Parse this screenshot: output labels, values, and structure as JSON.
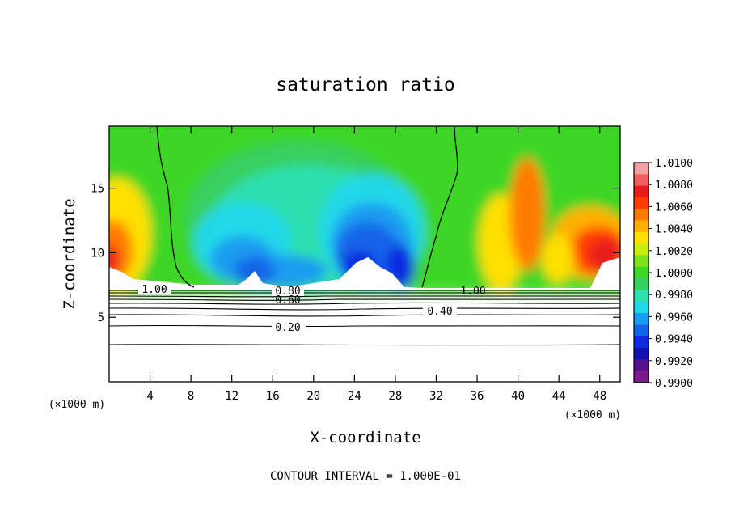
{
  "chart_data": {
    "type": "heatmap",
    "title": "saturation ratio",
    "xlabel": "X-coordinate",
    "ylabel": "Z-coordinate",
    "x_unit": "(×1000 m)",
    "footer": "CONTOUR INTERVAL = 1.000E-01",
    "xlim": [
      0,
      50
    ],
    "ylim": [
      0,
      19.8
    ],
    "x_ticks": [
      4,
      8,
      12,
      16,
      20,
      24,
      28,
      32,
      36,
      40,
      44,
      48
    ],
    "y_ticks": [
      5,
      10,
      15
    ],
    "colorbar": {
      "min": 0.99,
      "max": 1.01,
      "labels": [
        "1.0100",
        "1.0080",
        "1.0060",
        "1.0040",
        "1.0020",
        "1.0000",
        "0.9980",
        "0.9960",
        "0.9940",
        "0.9920",
        "0.9900"
      ],
      "colors": [
        "#f4a0a0",
        "#f06060",
        "#e81c1c",
        "#ff3c00",
        "#ff7a00",
        "#ffb000",
        "#ffe000",
        "#c8ee10",
        "#7ee21a",
        "#3ed628",
        "#38d060",
        "#2ee0b0",
        "#22d8e8",
        "#1a9cf0",
        "#1464e8",
        "#0c2ce0",
        "#1010b0",
        "#5a108c",
        "#7a1a8c"
      ]
    },
    "contour_labels": [
      {
        "text": "1.00",
        "x": 3.8,
        "y": 7.1
      },
      {
        "text": "0.80",
        "x": 17.5,
        "y": 7.0
      },
      {
        "text": "0.60",
        "x": 17.5,
        "y": 6.4
      },
      {
        "text": "0.40",
        "x": 32.0,
        "y": 5.6
      },
      {
        "text": "0.20",
        "x": 17.5,
        "y": 4.3
      },
      {
        "text": "1.00",
        "x": 35.2,
        "y": 7.1
      }
    ]
  }
}
